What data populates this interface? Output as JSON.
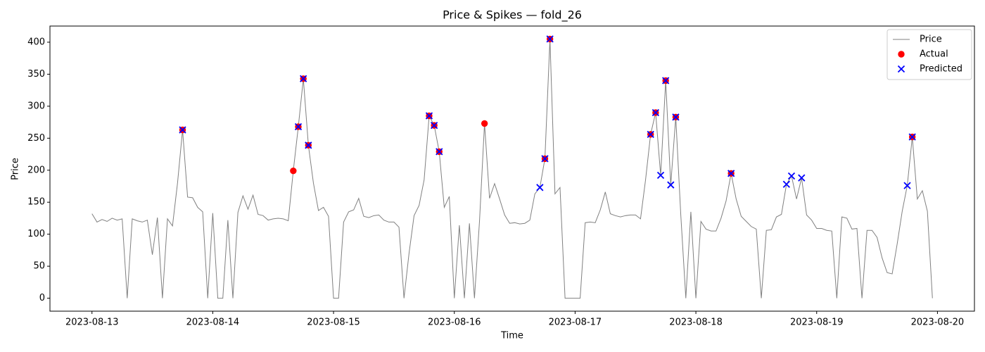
{
  "chart_data": {
    "type": "line",
    "title": "Price & Spikes — fold_26",
    "xlabel": "Time",
    "ylabel": "Price",
    "x": [
      "2023-08-13 00:00",
      "2023-08-13 01:00",
      "2023-08-13 02:00",
      "2023-08-13 03:00",
      "2023-08-13 04:00",
      "2023-08-13 05:00",
      "2023-08-13 06:00",
      "2023-08-13 07:00",
      "2023-08-13 08:00",
      "2023-08-13 09:00",
      "2023-08-13 10:00",
      "2023-08-13 11:00",
      "2023-08-13 12:00",
      "2023-08-13 13:00",
      "2023-08-13 14:00",
      "2023-08-13 15:00",
      "2023-08-13 16:00",
      "2023-08-13 17:00",
      "2023-08-13 18:00",
      "2023-08-13 19:00",
      "2023-08-13 20:00",
      "2023-08-13 21:00",
      "2023-08-13 22:00",
      "2023-08-13 23:00",
      "2023-08-14 00:00",
      "2023-08-14 01:00",
      "2023-08-14 02:00",
      "2023-08-14 03:00",
      "2023-08-14 04:00",
      "2023-08-14 05:00",
      "2023-08-14 06:00",
      "2023-08-14 07:00",
      "2023-08-14 08:00",
      "2023-08-14 09:00",
      "2023-08-14 10:00",
      "2023-08-14 11:00",
      "2023-08-14 12:00",
      "2023-08-14 13:00",
      "2023-08-14 14:00",
      "2023-08-14 15:00",
      "2023-08-14 16:00",
      "2023-08-14 17:00",
      "2023-08-14 18:00",
      "2023-08-14 19:00",
      "2023-08-14 20:00",
      "2023-08-14 21:00",
      "2023-08-14 22:00",
      "2023-08-14 23:00",
      "2023-08-15 00:00",
      "2023-08-15 01:00",
      "2023-08-15 02:00",
      "2023-08-15 03:00",
      "2023-08-15 04:00",
      "2023-08-15 05:00",
      "2023-08-15 06:00",
      "2023-08-15 07:00",
      "2023-08-15 08:00",
      "2023-08-15 09:00",
      "2023-08-15 10:00",
      "2023-08-15 11:00",
      "2023-08-15 12:00",
      "2023-08-15 13:00",
      "2023-08-15 14:00",
      "2023-08-15 15:00",
      "2023-08-15 16:00",
      "2023-08-15 17:00",
      "2023-08-15 18:00",
      "2023-08-15 19:00",
      "2023-08-15 20:00",
      "2023-08-15 21:00",
      "2023-08-15 22:00",
      "2023-08-15 23:00",
      "2023-08-16 00:00",
      "2023-08-16 01:00",
      "2023-08-16 02:00",
      "2023-08-16 03:00",
      "2023-08-16 04:00",
      "2023-08-16 05:00",
      "2023-08-16 06:00",
      "2023-08-16 07:00",
      "2023-08-16 08:00",
      "2023-08-16 09:00",
      "2023-08-16 10:00",
      "2023-08-16 11:00",
      "2023-08-16 12:00",
      "2023-08-16 13:00",
      "2023-08-16 14:00",
      "2023-08-16 15:00",
      "2023-08-16 16:00",
      "2023-08-16 17:00",
      "2023-08-16 18:00",
      "2023-08-16 19:00",
      "2023-08-16 20:00",
      "2023-08-16 21:00",
      "2023-08-16 22:00",
      "2023-08-16 23:00",
      "2023-08-17 00:00",
      "2023-08-17 01:00",
      "2023-08-17 02:00",
      "2023-08-17 03:00",
      "2023-08-17 04:00",
      "2023-08-17 05:00",
      "2023-08-17 06:00",
      "2023-08-17 07:00",
      "2023-08-17 08:00",
      "2023-08-17 09:00",
      "2023-08-17 10:00",
      "2023-08-17 11:00",
      "2023-08-17 12:00",
      "2023-08-17 13:00",
      "2023-08-17 14:00",
      "2023-08-17 15:00",
      "2023-08-17 16:00",
      "2023-08-17 17:00",
      "2023-08-17 18:00",
      "2023-08-17 19:00",
      "2023-08-17 20:00",
      "2023-08-17 21:00",
      "2023-08-17 22:00",
      "2023-08-17 23:00",
      "2023-08-18 00:00",
      "2023-08-18 01:00",
      "2023-08-18 02:00",
      "2023-08-18 03:00",
      "2023-08-18 04:00",
      "2023-08-18 05:00",
      "2023-08-18 06:00",
      "2023-08-18 07:00",
      "2023-08-18 08:00",
      "2023-08-18 09:00",
      "2023-08-18 10:00",
      "2023-08-18 11:00",
      "2023-08-18 12:00",
      "2023-08-18 13:00",
      "2023-08-18 14:00",
      "2023-08-18 15:00",
      "2023-08-18 16:00",
      "2023-08-18 17:00",
      "2023-08-18 18:00",
      "2023-08-18 19:00",
      "2023-08-18 20:00",
      "2023-08-18 21:00",
      "2023-08-18 22:00",
      "2023-08-18 23:00",
      "2023-08-19 00:00",
      "2023-08-19 01:00",
      "2023-08-19 02:00",
      "2023-08-19 03:00",
      "2023-08-19 04:00",
      "2023-08-19 05:00",
      "2023-08-19 06:00",
      "2023-08-19 07:00",
      "2023-08-19 08:00",
      "2023-08-19 09:00",
      "2023-08-19 10:00",
      "2023-08-19 11:00",
      "2023-08-19 12:00",
      "2023-08-19 13:00",
      "2023-08-19 14:00",
      "2023-08-19 15:00",
      "2023-08-19 16:00",
      "2023-08-19 17:00",
      "2023-08-19 18:00",
      "2023-08-19 19:00",
      "2023-08-19 20:00",
      "2023-08-19 21:00",
      "2023-08-19 22:00",
      "2023-08-19 23:00"
    ],
    "series": [
      {
        "name": "Price",
        "type": "line",
        "color": "gray",
        "values": [
          132,
          119,
          123,
          120,
          125,
          122,
          124,
          0,
          124,
          121,
          119,
          122,
          68,
          126,
          0,
          124,
          113,
          180,
          263,
          158,
          157,
          142,
          135,
          0,
          133,
          0,
          0,
          122,
          0,
          134,
          160,
          139,
          161,
          131,
          129,
          122,
          124,
          125,
          124,
          121,
          199,
          268,
          343,
          239,
          180,
          137,
          142,
          128,
          0,
          0,
          119,
          135,
          138,
          156,
          128,
          126,
          129,
          130,
          122,
          119,
          119,
          111,
          0,
          70,
          129,
          145,
          185,
          285,
          270,
          229,
          142,
          159,
          0,
          114,
          0,
          117,
          0,
          120,
          273,
          156,
          179,
          155,
          130,
          117,
          118,
          116,
          117,
          122,
          163,
          173,
          218,
          405,
          163,
          173,
          0,
          0,
          0,
          0,
          118,
          119,
          118,
          138,
          166,
          132,
          129,
          127,
          129,
          130,
          130,
          124,
          185,
          256,
          290,
          192,
          340,
          177,
          283,
          130,
          0,
          135,
          0,
          120,
          108,
          105,
          105,
          125,
          152,
          195,
          155,
          128,
          120,
          112,
          108,
          0,
          106,
          107,
          127,
          131,
          178,
          191,
          155,
          188,
          130,
          122,
          109,
          109,
          106,
          105,
          0,
          127,
          125,
          108,
          109,
          0,
          106,
          106,
          95,
          63,
          40,
          38,
          85,
          136,
          176,
          252,
          155,
          168,
          136,
          0
        ]
      },
      {
        "name": "Actual",
        "type": "scatter",
        "marker": "o",
        "color": "red",
        "x": [
          "2023-08-13 18:00",
          "2023-08-14 16:00",
          "2023-08-14 17:00",
          "2023-08-14 18:00",
          "2023-08-14 19:00",
          "2023-08-15 19:00",
          "2023-08-15 20:00",
          "2023-08-15 21:00",
          "2023-08-16 06:00",
          "2023-08-16 18:00",
          "2023-08-16 19:00",
          "2023-08-17 15:00",
          "2023-08-17 16:00",
          "2023-08-17 18:00",
          "2023-08-17 20:00",
          "2023-08-18 07:00",
          "2023-08-19 19:00"
        ],
        "values": [
          263,
          199,
          268,
          343,
          239,
          285,
          270,
          229,
          273,
          218,
          405,
          256,
          290,
          340,
          283,
          195,
          252
        ]
      },
      {
        "name": "Predicted",
        "type": "scatter",
        "marker": "x",
        "color": "blue",
        "x": [
          "2023-08-13 18:00",
          "2023-08-14 17:00",
          "2023-08-14 18:00",
          "2023-08-14 19:00",
          "2023-08-15 19:00",
          "2023-08-15 20:00",
          "2023-08-15 21:00",
          "2023-08-16 17:00",
          "2023-08-16 18:00",
          "2023-08-16 19:00",
          "2023-08-17 15:00",
          "2023-08-17 16:00",
          "2023-08-17 17:00",
          "2023-08-17 18:00",
          "2023-08-17 19:00",
          "2023-08-17 20:00",
          "2023-08-18 07:00",
          "2023-08-18 18:00",
          "2023-08-18 19:00",
          "2023-08-18 21:00",
          "2023-08-19 18:00",
          "2023-08-19 19:00"
        ],
        "values": [
          263,
          268,
          343,
          239,
          285,
          270,
          229,
          173,
          218,
          405,
          256,
          290,
          192,
          340,
          177,
          283,
          195,
          178,
          191,
          188,
          176,
          252
        ]
      }
    ],
    "xticks": [
      "2023-08-13",
      "2023-08-14",
      "2023-08-15",
      "2023-08-16",
      "2023-08-17",
      "2023-08-18",
      "2023-08-19",
      "2023-08-20"
    ],
    "ylim": [
      -20.25,
      425.25
    ],
    "yticks": [
      0,
      50,
      100,
      150,
      200,
      250,
      300,
      350,
      400
    ],
    "grid": false,
    "legend": "upper right"
  }
}
